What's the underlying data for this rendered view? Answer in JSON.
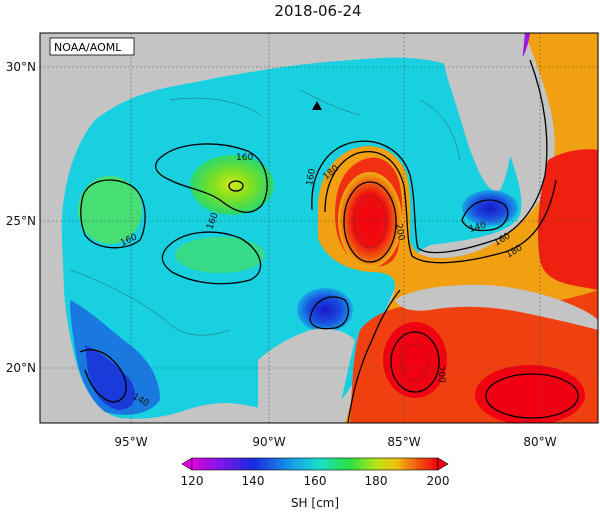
{
  "title": "2018-06-24",
  "credit": "NOAA/AOML",
  "lat_ticks": [
    "30°N",
    "25°N",
    "20°N"
  ],
  "lon_ticks": [
    "95°W",
    "90°W",
    "85°W",
    "80°W"
  ],
  "colorbar": {
    "label": "SH [cm]",
    "ticks": [
      "120",
      "140",
      "160",
      "180",
      "200"
    ],
    "range": [
      120,
      200
    ]
  },
  "contour_labels": [
    {
      "id": "c160a",
      "text": "160"
    },
    {
      "id": "c160b",
      "text": "160"
    },
    {
      "id": "c160c",
      "text": "160"
    },
    {
      "id": "c160d",
      "text": "160"
    },
    {
      "id": "c180a",
      "text": "180"
    },
    {
      "id": "c180b",
      "text": "180"
    },
    {
      "id": "c200a",
      "text": "200"
    },
    {
      "id": "c200b",
      "text": "200"
    },
    {
      "id": "c140a",
      "text": "140"
    },
    {
      "id": "c140b",
      "text": "140"
    },
    {
      "id": "c160e",
      "text": "160"
    }
  ],
  "colors": {
    "land": "#c4c4c4",
    "frame": "#000000",
    "grid": "#444444",
    "low": "#0a1ed6",
    "mid": "#18d6dc",
    "high": "#f01010"
  }
}
